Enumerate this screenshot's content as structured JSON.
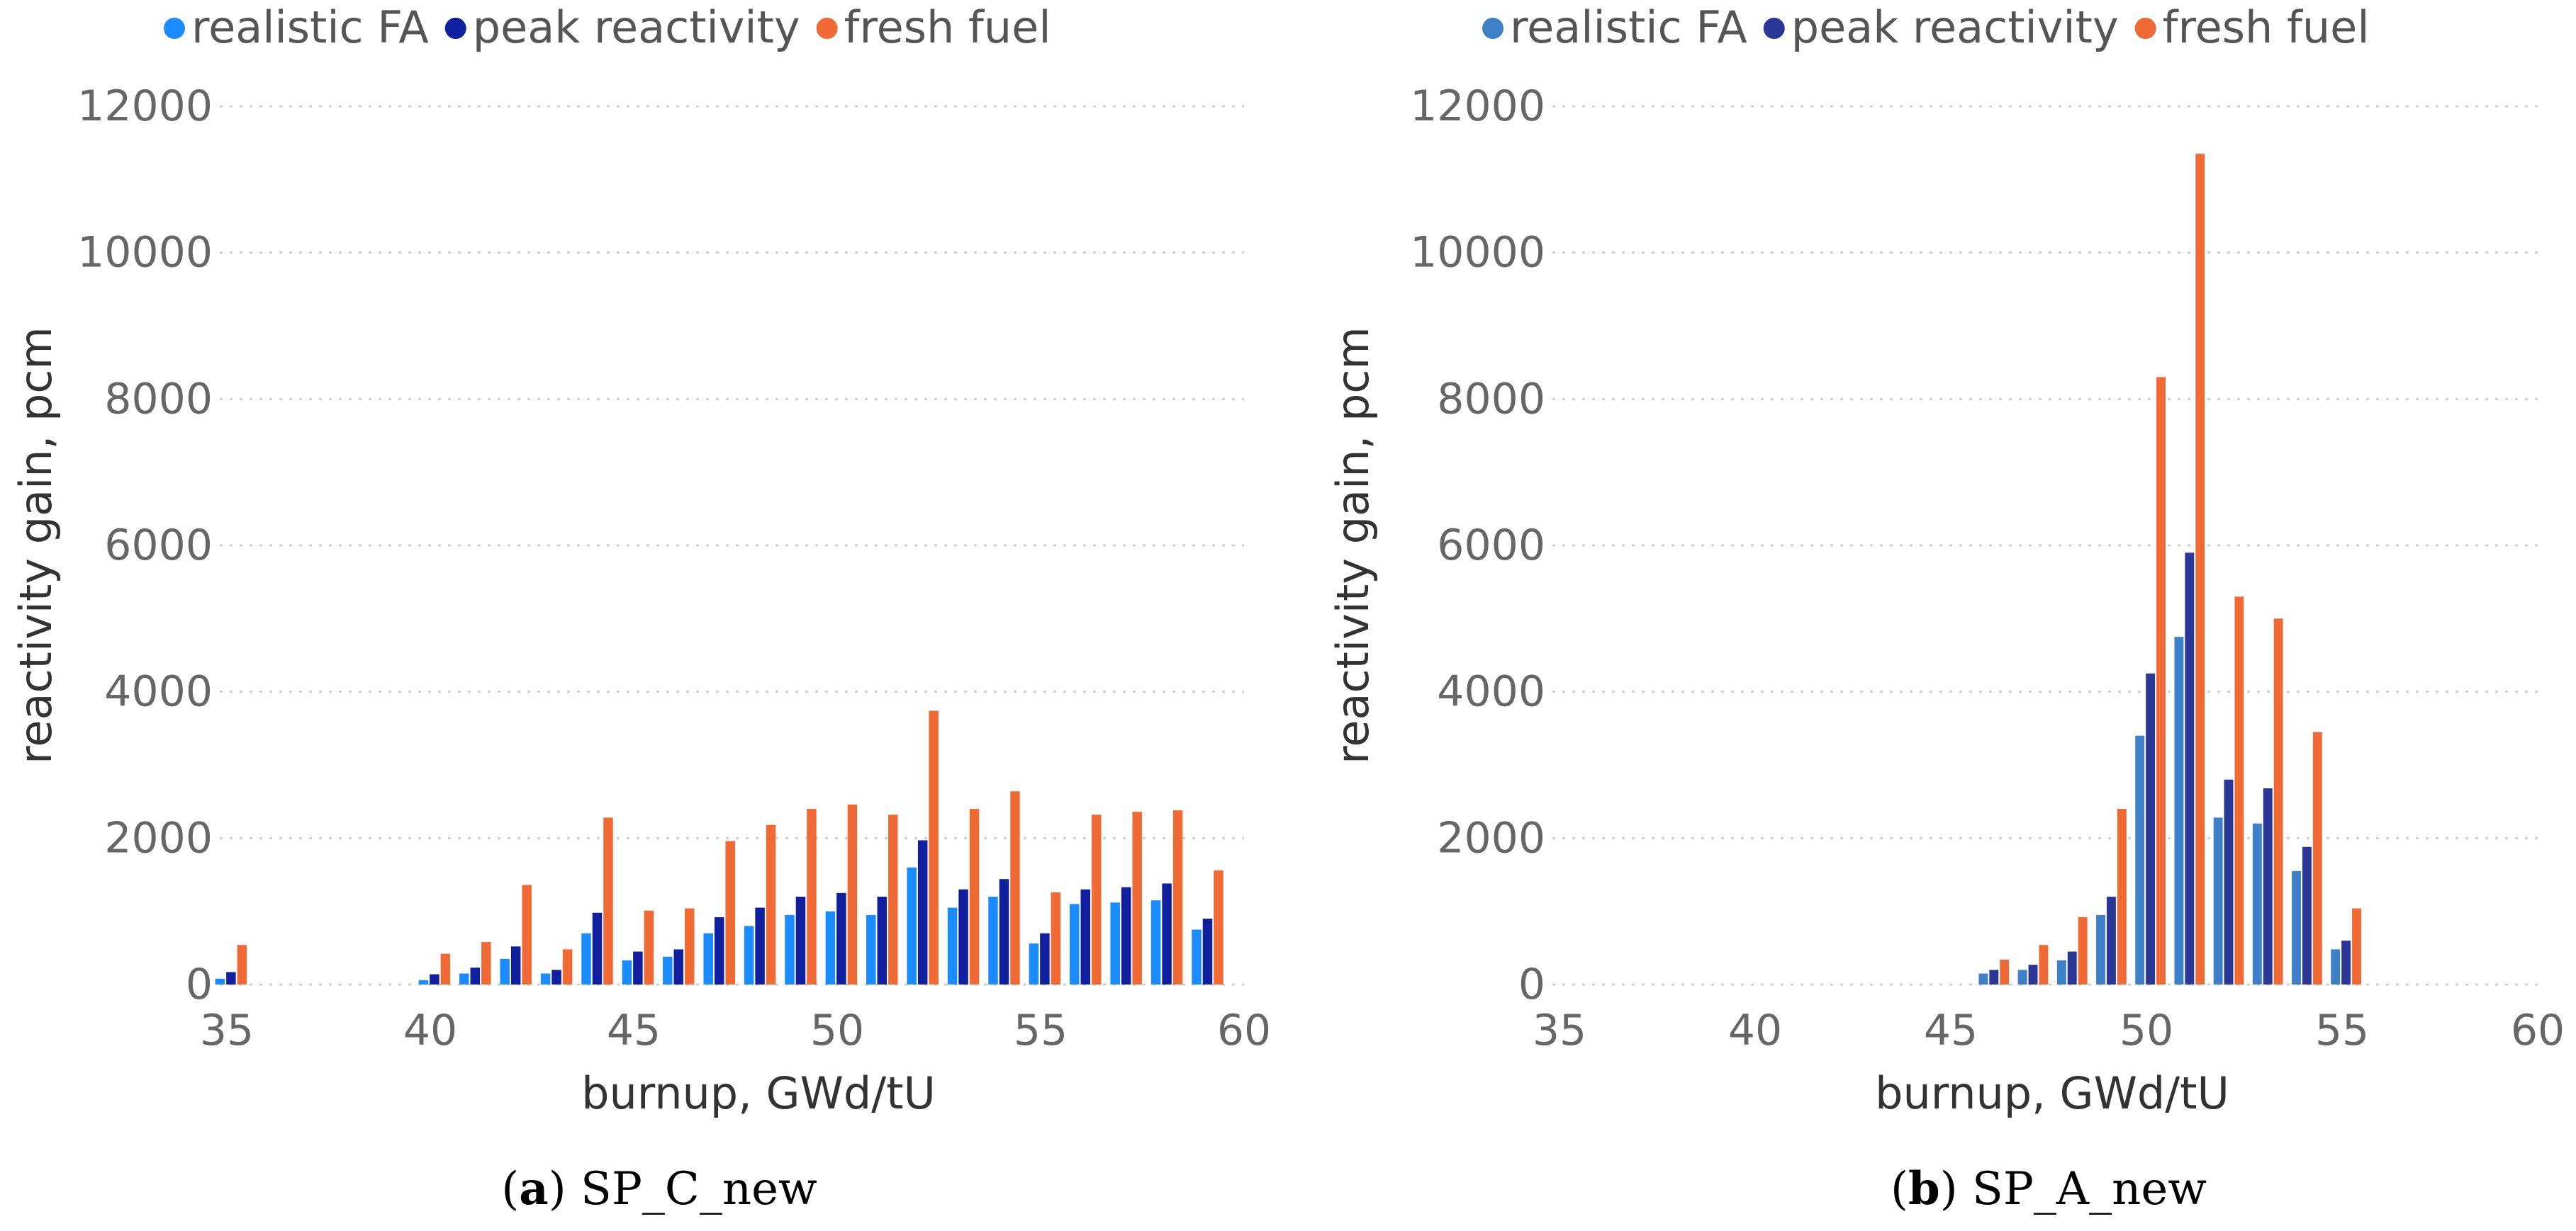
{
  "chart_data": [
    {
      "type": "bar",
      "panel": "a",
      "caption_letter": "a",
      "caption_text": "SP_C_new",
      "legend_placement": "top-left",
      "xlabel": "burnup, GWd/tU",
      "ylabel": "reactivity gain, pcm",
      "xlim": [
        35,
        60
      ],
      "ylim": [
        0,
        12000
      ],
      "xticks": [
        "35",
        "40",
        "45",
        "50",
        "55",
        "60"
      ],
      "yticks": [
        "0",
        "2000",
        "4000",
        "6000",
        "8000",
        "10000",
        "12000"
      ],
      "grid": true,
      "x": [
        35,
        40,
        41,
        42,
        43,
        44,
        45,
        46,
        47,
        48,
        49,
        50,
        51,
        52,
        53,
        54,
        55,
        56,
        57,
        58,
        59
      ],
      "series": [
        {
          "name": "realistic FA",
          "color": "#1a8cff",
          "values": [
            80,
            60,
            150,
            350,
            150,
            700,
            330,
            380,
            700,
            800,
            950,
            1000,
            950,
            1600,
            1050,
            1200,
            560,
            1100,
            1120,
            1150,
            750
          ]
        },
        {
          "name": "peak reactivity",
          "color": "#0f1f9e",
          "values": [
            170,
            140,
            230,
            520,
            200,
            980,
            450,
            480,
            920,
            1050,
            1200,
            1250,
            1200,
            1970,
            1300,
            1440,
            700,
            1300,
            1330,
            1380,
            900
          ]
        },
        {
          "name": "fresh fuel",
          "color": "#f06a35",
          "values": [
            540,
            420,
            580,
            1360,
            480,
            2280,
            1010,
            1040,
            1960,
            2180,
            2400,
            2460,
            2320,
            3740,
            2400,
            2640,
            1260,
            2320,
            2360,
            2380,
            1560
          ]
        }
      ]
    },
    {
      "type": "bar",
      "panel": "b",
      "caption_letter": "b",
      "caption_text": "SP_A_new",
      "legend_placement": "top-left",
      "xlabel": "burnup, GWd/tU",
      "ylabel": "reactivity gain, pcm",
      "xlim": [
        35,
        60
      ],
      "ylim": [
        0,
        12000
      ],
      "xticks": [
        "35",
        "40",
        "45",
        "50",
        "55",
        "60"
      ],
      "yticks": [
        "0",
        "2000",
        "4000",
        "6000",
        "8000",
        "10000",
        "12000"
      ],
      "grid": true,
      "x": [
        46,
        47,
        48,
        49,
        50,
        51,
        52,
        53,
        54,
        55
      ],
      "series": [
        {
          "name": "realistic FA",
          "color": "#3d80c7",
          "values": [
            150,
            200,
            330,
            950,
            3400,
            4750,
            2280,
            2200,
            1550,
            480
          ]
        },
        {
          "name": "peak reactivity",
          "color": "#2a3795",
          "values": [
            200,
            270,
            450,
            1200,
            4250,
            5900,
            2800,
            2680,
            1880,
            600
          ]
        },
        {
          "name": "fresh fuel",
          "color": "#f06a35",
          "values": [
            340,
            540,
            920,
            2400,
            8300,
            11350,
            5300,
            5000,
            3450,
            1040
          ]
        }
      ]
    }
  ]
}
